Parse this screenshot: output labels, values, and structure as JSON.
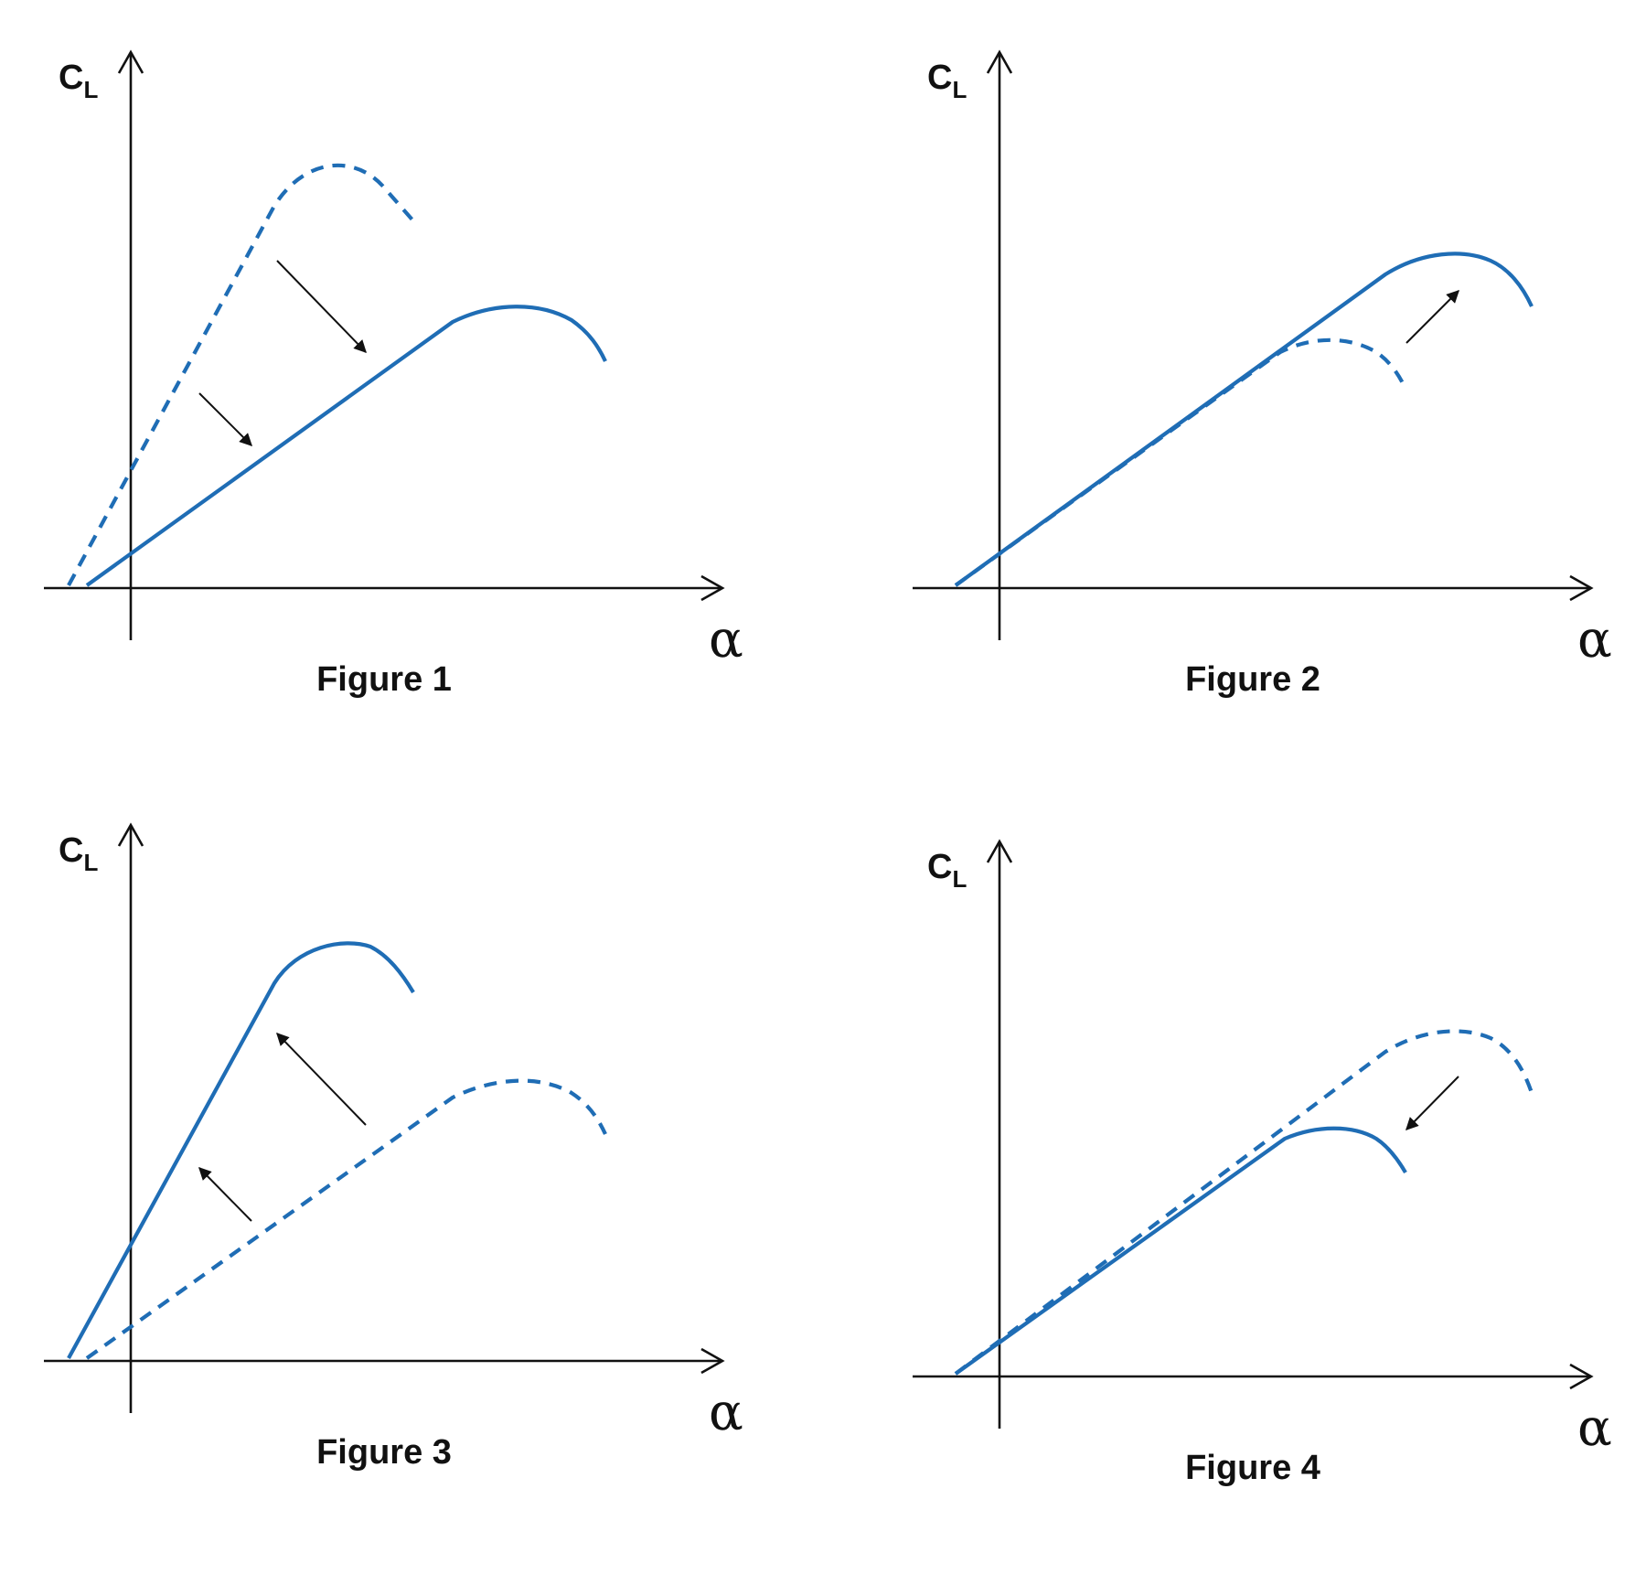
{
  "figures": [
    {
      "caption": "Figure 1",
      "y_label": "C",
      "y_label_sub": "L",
      "x_label": "α",
      "curves": [
        {
          "style": "dashed",
          "role": "original",
          "color": "#1f6db5"
        },
        {
          "style": "solid",
          "role": "modified",
          "color": "#1f6db5"
        }
      ],
      "shift_direction": "down-right"
    },
    {
      "caption": "Figure 2",
      "y_label": "C",
      "y_label_sub": "L",
      "x_label": "α",
      "curves": [
        {
          "style": "dashed",
          "role": "original",
          "color": "#1f6db5"
        },
        {
          "style": "solid",
          "role": "modified",
          "color": "#1f6db5"
        }
      ],
      "shift_direction": "up-right"
    },
    {
      "caption": "Figure 3",
      "y_label": "C",
      "y_label_sub": "L",
      "x_label": "α",
      "curves": [
        {
          "style": "dashed",
          "role": "original",
          "color": "#1f6db5"
        },
        {
          "style": "solid",
          "role": "modified",
          "color": "#1f6db5"
        }
      ],
      "shift_direction": "up-left"
    },
    {
      "caption": "Figure 4",
      "y_label": "C",
      "y_label_sub": "L",
      "x_label": "α",
      "curves": [
        {
          "style": "dashed",
          "role": "original",
          "color": "#1f6db5"
        },
        {
          "style": "solid",
          "role": "modified",
          "color": "#1f6db5"
        }
      ],
      "shift_direction": "down-left"
    }
  ],
  "colors": {
    "curve": "#1f6db5",
    "axis": "#111111",
    "background": "#ffffff"
  }
}
